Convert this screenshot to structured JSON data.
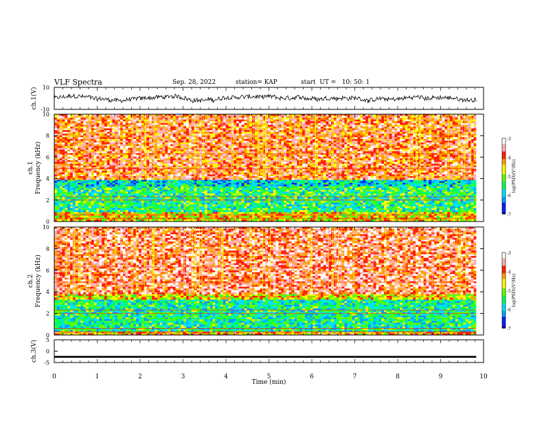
{
  "header": {
    "title": "VLF Spectra",
    "date": "Sep. 28, 2022",
    "station": "station= KAP",
    "start": "start  UT =   10: 50: 1"
  },
  "colors": {
    "spectro": [
      "#000090",
      "#0020ff",
      "#00a0ff",
      "#00e0ff",
      "#00ff60",
      "#60ff00",
      "#ffff00",
      "#ffa000",
      "#ff2000",
      "#ffb0b0",
      "#ffffff"
    ],
    "trace": "#000000"
  },
  "chart_data": [
    {
      "type": "line",
      "ylabel": "ch.1(V)",
      "ylim": [
        -10,
        10
      ],
      "yticks": [
        "10",
        "-10"
      ],
      "xlim": [
        0,
        10
      ],
      "description_series": "ch.1 waveform envelope, approx. ±5 V around 0"
    },
    {
      "type": "heatmap",
      "ylabel": "ch.1\nFrequency  (kHz)",
      "ylabel_lines": [
        "ch.1",
        "Frequency  (kHz)"
      ],
      "ylim": [
        0,
        10
      ],
      "yticks": [
        "0",
        "2",
        "4",
        "6",
        "8",
        "10"
      ],
      "xlim": [
        0,
        10
      ],
      "colorbar": {
        "label": "log(PSD)(V²/Hz)",
        "ticks": [
          "-3",
          "-4",
          "-5",
          "-6",
          "-7"
        ],
        "range": [
          -7,
          -3
        ]
      },
      "bands": [
        {
          "from": 0,
          "to": 0.9,
          "level": -4.5
        },
        {
          "from": 0.9,
          "to": 3.3,
          "level": -5.4
        },
        {
          "from": 3.3,
          "to": 3.9,
          "level": -5.8
        },
        {
          "from": 3.9,
          "to": 10,
          "level": -3.8
        }
      ],
      "data_end_min": 9.83
    },
    {
      "type": "heatmap",
      "ylabel_lines": [
        "ch.2",
        "Frequency  (kHz)"
      ],
      "ylim": [
        0,
        10
      ],
      "yticks": [
        "0",
        "2",
        "4",
        "6",
        "8",
        "10"
      ],
      "xlim": [
        0,
        10
      ],
      "colorbar": {
        "label": "log(PSD)(V²/Hz)",
        "ticks": [
          "-3",
          "-4",
          "-5",
          "-6",
          "-7"
        ],
        "range": [
          -7,
          -3
        ]
      },
      "bands": [
        {
          "from": 0,
          "to": 0.3,
          "level": -4.2
        },
        {
          "from": 0.3,
          "to": 3.3,
          "level": -5.5
        },
        {
          "from": 3.3,
          "to": 3.8,
          "level": -4.5
        },
        {
          "from": 3.8,
          "to": 10,
          "level": -3.6
        }
      ],
      "data_end_min": 9.83
    },
    {
      "type": "line",
      "ylabel": "ch.3(V)",
      "ylim": [
        -5,
        5
      ],
      "yticks": [
        "5",
        "0",
        "-5"
      ],
      "xlim": [
        0,
        10
      ],
      "xlabel": "Time  (min)",
      "xticks": [
        "0",
        "1",
        "2",
        "3",
        "4",
        "5",
        "6",
        "7",
        "8",
        "9",
        "10"
      ],
      "description_series": "ch.3 near-constant level approx. -2.5 V"
    }
  ]
}
